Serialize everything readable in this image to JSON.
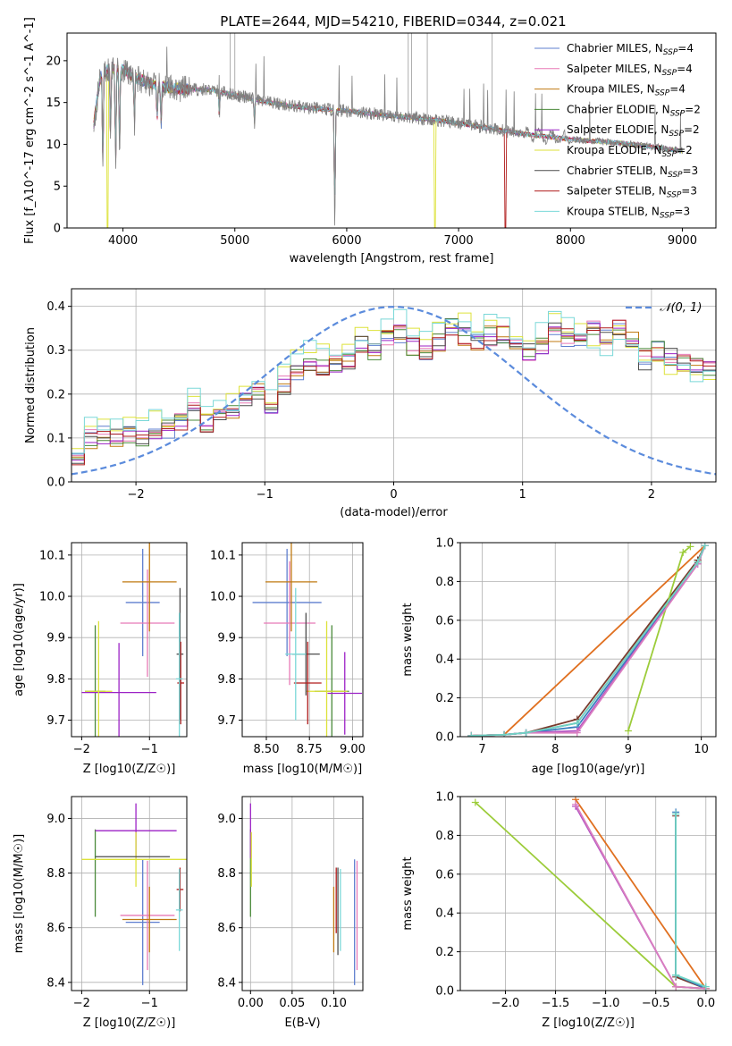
{
  "figure_title": "PLATE=2644, MJD=54210, FIBERID=0344, z=0.021",
  "colors": {
    "grid": "#b0b0b0",
    "normal_curve": "#5b8bdc",
    "series": [
      "#5f7fcf",
      "#e879b6",
      "#c07a12",
      "#4a8a3a",
      "#9c22c6",
      "#dde23a",
      "#4d4d4d",
      "#b01c1c",
      "#7ad8d8"
    ],
    "mw_series": [
      "#8f8f8f",
      "#7a3b2e",
      "#3a7fbf",
      "#b04fc2",
      "#e07020",
      "#9ccc3a",
      "#d97ec0",
      "#6fd3c4"
    ]
  },
  "chart_data": [
    {
      "type": "line",
      "name": "spectrum",
      "xlabel": "wavelength [Angstrom, rest frame]",
      "ylabel": "Flux [f_λ10^-17 erg cm^-2 s^-1 A^-1]",
      "xlim": [
        3500,
        9300
      ],
      "ylim": [
        0,
        23.3
      ],
      "xticks": [
        4000,
        5000,
        6000,
        7000,
        8000,
        9000
      ],
      "yticks": [
        0,
        5,
        10,
        15,
        20
      ],
      "grid": false,
      "legend_position": "top-right",
      "legend": [
        "Chabrier MILES, N_SSP=4",
        "Salpeter MILES, N_SSP=4",
        "Kroupa MILES, N_SSP=4",
        "Chabrier ELODIE, N_SSP=2",
        "Salpeter ELODIE, N_SSP=2",
        "Kroupa ELODIE, N_SSP=2",
        "Chabrier STELIB, N_SSP=3",
        "Salpeter STELIB, N_SSP=3",
        "Kroupa STELIB, N_SSP=3"
      ],
      "continuum": {
        "x": [
          3740,
          3800,
          3900,
          4000,
          4100,
          4300,
          4500,
          4800,
          5000,
          5300,
          5600,
          6000,
          6400,
          6800,
          7200,
          7600,
          8000,
          8400,
          8800,
          9000
        ],
        "y": [
          12.5,
          18.3,
          19.2,
          18.9,
          18.0,
          17.0,
          16.6,
          16.5,
          15.9,
          15.0,
          14.4,
          14.0,
          13.4,
          12.9,
          12.1,
          11.2,
          10.6,
          10.2,
          9.6,
          9.2
        ]
      },
      "absorption_lines": [
        {
          "x": 3820,
          "depth": 12.5
        },
        {
          "x": 3889,
          "depth": 9.0
        },
        {
          "x": 3934,
          "depth": 12.8
        },
        {
          "x": 3969,
          "depth": 10.5
        },
        {
          "x": 4102,
          "depth": 6.0
        },
        {
          "x": 4305,
          "depth": 4.5
        },
        {
          "x": 4341,
          "depth": 5.0
        },
        {
          "x": 4861,
          "depth": 3.0
        },
        {
          "x": 5175,
          "depth": 3.0
        },
        {
          "x": 5893,
          "depth": 14.2
        }
      ],
      "model_drops": [
        {
          "x": 3860,
          "to": 0.0,
          "series": 5
        },
        {
          "x": 6790,
          "to": 0.0,
          "series": 5
        },
        {
          "x": 7420,
          "to": 0.0,
          "series": 7
        }
      ]
    },
    {
      "type": "line",
      "name": "residual-histogram",
      "xlabel": "(data-model)/error",
      "ylabel": "Normed distribution",
      "xlim": [
        -2.5,
        2.5
      ],
      "ylim": [
        0,
        0.44
      ],
      "xticks": [
        -2,
        -1,
        0,
        1,
        2
      ],
      "yticks": [
        0.0,
        0.1,
        0.2,
        0.3,
        0.4
      ],
      "grid": true,
      "legend_position": "top-right",
      "legend": [
        "𝒩(0, 1)"
      ],
      "bin_edges_from": -2.5,
      "bin_width": 0.1,
      "base_profile": [
        0.06,
        0.1,
        0.11,
        0.1,
        0.11,
        0.1,
        0.11,
        0.12,
        0.14,
        0.16,
        0.13,
        0.16,
        0.15,
        0.18,
        0.2,
        0.17,
        0.22,
        0.25,
        0.27,
        0.26,
        0.27,
        0.28,
        0.31,
        0.3,
        0.33,
        0.34,
        0.31,
        0.3,
        0.32,
        0.35,
        0.33,
        0.32,
        0.33,
        0.34,
        0.3,
        0.3,
        0.31,
        0.34,
        0.33,
        0.33,
        0.35,
        0.33,
        0.36,
        0.33,
        0.28,
        0.3,
        0.28,
        0.27,
        0.27,
        0.25,
        0.24,
        0.22,
        0.22,
        0.2,
        0.21,
        0.18,
        0.17,
        0.19,
        0.16,
        0.18,
        0.15,
        0.14,
        0.14,
        0.13,
        0.12,
        0.1,
        0.09,
        0.08,
        0.08,
        0.07,
        0.07,
        0.06,
        0.06,
        0.05,
        0.04,
        0.04,
        0.04,
        0.03,
        0.03,
        0.03,
        0.02,
        0.02,
        0.02,
        0.02,
        0.01,
        0.01,
        0.02,
        0.01,
        0.01,
        0.02,
        0.01,
        0.01,
        0.02,
        0.01,
        0.01,
        0.01,
        0.01,
        0.01,
        0.01,
        0.01
      ]
    },
    {
      "type": "scatter",
      "name": "age-vs-Z",
      "xlabel": "Z [log10(Z/Z☉)]",
      "ylabel": "age  [log10(age/yr)]",
      "xlim": [
        -2.15,
        -0.45
      ],
      "ylim": [
        9.66,
        10.13
      ],
      "xticks": [
        -2,
        -1
      ],
      "yticks": [
        9.7,
        9.8,
        9.9,
        10.0,
        10.1
      ],
      "grid": true,
      "points": [
        {
          "series": 0,
          "x": -1.1,
          "xerr": 0.25,
          "y": 9.985,
          "yerr": 0.13
        },
        {
          "series": 1,
          "x": -1.03,
          "xerr": 0.4,
          "y": 9.935,
          "yerr": 0.13
        },
        {
          "series": 2,
          "x": -1.0,
          "xerr": 0.4,
          "y": 10.035,
          "yerr": 0.12
        },
        {
          "series": 3,
          "x": -1.8,
          "xerr": 0.15,
          "y": 9.77,
          "yerr": 0.16
        },
        {
          "series": 4,
          "x": -1.45,
          "xerr": 0.55,
          "y": 9.767,
          "yerr": 0.12
        },
        {
          "series": 5,
          "x": -1.75,
          "xerr": 0.2,
          "y": 9.77,
          "yerr": 0.17
        },
        {
          "series": 6,
          "x": -0.55,
          "xerr": 0.05,
          "y": 9.86,
          "yerr": 0.16
        },
        {
          "series": 7,
          "x": -0.54,
          "xerr": 0.05,
          "y": 9.79,
          "yerr": 0.1
        },
        {
          "series": 8,
          "x": -0.56,
          "xerr": 0.05,
          "y": 9.8,
          "yerr": 0.16
        }
      ]
    },
    {
      "type": "scatter",
      "name": "age-vs-mass",
      "xlabel": "mass [log10(M/M☉)]",
      "ylabel": "",
      "xlim": [
        8.36,
        9.06
      ],
      "ylim": [
        9.66,
        10.13
      ],
      "xticks": [
        8.5,
        8.75,
        9.0
      ],
      "yticks": [
        9.7,
        9.8,
        9.9,
        10.0,
        10.1
      ],
      "grid": true,
      "points": [
        {
          "series": 0,
          "x": 8.62,
          "xerr": 0.2,
          "y": 9.985,
          "yerr": 0.13
        },
        {
          "series": 1,
          "x": 8.635,
          "xerr": 0.15,
          "y": 9.935,
          "yerr": 0.15
        },
        {
          "series": 2,
          "x": 8.645,
          "xerr": 0.15,
          "y": 10.035,
          "yerr": 0.12
        },
        {
          "series": 3,
          "x": 8.88,
          "xerr": 0.1,
          "y": 9.77,
          "yerr": 0.16
        },
        {
          "series": 4,
          "x": 8.955,
          "xerr": 0.1,
          "y": 9.765,
          "yerr": 0.1
        },
        {
          "series": 5,
          "x": 8.85,
          "xerr": 0.12,
          "y": 9.77,
          "yerr": 0.17
        },
        {
          "series": 6,
          "x": 8.73,
          "xerr": 0.08,
          "y": 9.86,
          "yerr": 0.1
        },
        {
          "series": 7,
          "x": 8.74,
          "xerr": 0.08,
          "y": 9.79,
          "yerr": 0.1
        },
        {
          "series": 8,
          "x": 8.67,
          "xerr": 0.06,
          "y": 9.86,
          "yerr": 0.16
        }
      ]
    },
    {
      "type": "line",
      "name": "mass-weight-vs-age",
      "xlabel": "age  [log10(age/yr)]",
      "ylabel": "mass weight",
      "xlim": [
        6.7,
        10.2
      ],
      "ylim": [
        0,
        1
      ],
      "xticks": [
        7,
        8,
        9,
        10
      ],
      "yticks": [
        0.0,
        0.2,
        0.4,
        0.6,
        0.8,
        1.0
      ],
      "grid": true,
      "series": [
        {
          "color_index": 0,
          "x": [
            6.85,
            7.3,
            7.6,
            8.3,
            9.95,
            10.05
          ],
          "y": [
            0.005,
            0.01,
            0.02,
            0.07,
            0.9,
            0.985
          ]
        },
        {
          "color_index": 1,
          "x": [
            6.85,
            7.3,
            7.6,
            8.3,
            9.95,
            10.05
          ],
          "y": [
            0.005,
            0.01,
            0.02,
            0.09,
            0.91,
            0.985
          ]
        },
        {
          "color_index": 2,
          "x": [
            6.85,
            7.3,
            7.6,
            8.3,
            9.95,
            10.05
          ],
          "y": [
            0.005,
            0.01,
            0.02,
            0.05,
            0.89,
            0.985
          ]
        },
        {
          "color_index": 3,
          "x": [
            6.85,
            7.3,
            7.6,
            8.3,
            9.95,
            10.05
          ],
          "y": [
            0.005,
            0.01,
            0.02,
            0.03,
            0.89,
            0.985
          ]
        },
        {
          "color_index": 4,
          "x": [
            6.85,
            7.3,
            10.05
          ],
          "y": [
            0.005,
            0.01,
            0.985
          ]
        },
        {
          "color_index": 5,
          "x": [
            9.0,
            9.75,
            9.85
          ],
          "y": [
            0.03,
            0.95,
            0.98
          ]
        },
        {
          "color_index": 6,
          "x": [
            6.85,
            7.3,
            7.6,
            8.3,
            9.95,
            10.05
          ],
          "y": [
            0.005,
            0.01,
            0.02,
            0.02,
            0.89,
            0.985
          ]
        },
        {
          "color_index": 7,
          "x": [
            6.85,
            7.3,
            7.6,
            8.3,
            9.95,
            10.05
          ],
          "y": [
            0.005,
            0.01,
            0.02,
            0.07,
            0.9,
            0.985
          ]
        }
      ]
    },
    {
      "type": "scatter",
      "name": "mass-vs-Z",
      "xlabel": "Z [log10(Z/Z☉)]",
      "ylabel": "mass [log10(M/M☉)]",
      "xlim": [
        -2.15,
        -0.45
      ],
      "ylim": [
        8.37,
        9.08
      ],
      "xticks": [
        -2,
        -1
      ],
      "yticks": [
        8.4,
        8.6,
        8.8,
        9.0
      ],
      "grid": true,
      "points": [
        {
          "series": 0,
          "x": -1.1,
          "xerr": 0.25,
          "y": 8.62,
          "yerr": 0.23
        },
        {
          "series": 1,
          "x": -1.03,
          "xerr": 0.4,
          "y": 8.645,
          "yerr": 0.2
        },
        {
          "series": 2,
          "x": -1.0,
          "xerr": 0.4,
          "y": 8.63,
          "yerr": 0.12
        },
        {
          "series": 3,
          "x": -1.8,
          "xerr": 0.0,
          "y": 8.8,
          "yerr": 0.16
        },
        {
          "series": 4,
          "x": -1.2,
          "xerr": 0.6,
          "y": 8.955,
          "yerr": 0.1
        },
        {
          "series": 5,
          "x": -1.2,
          "xerr": 0.8,
          "y": 8.85,
          "yerr": 0.1
        },
        {
          "series": 6,
          "x": -1.25,
          "xerr": 0.55,
          "y": 8.86,
          "yerr": 0.0
        },
        {
          "series": 7,
          "x": -0.55,
          "xerr": 0.05,
          "y": 8.74,
          "yerr": 0.08
        },
        {
          "series": 8,
          "x": -0.56,
          "xerr": 0.05,
          "y": 8.665,
          "yerr": 0.15
        }
      ]
    },
    {
      "type": "scatter",
      "name": "mass-vs-EBV",
      "xlabel": "E(B-V)",
      "ylabel": "",
      "xlim": [
        -0.01,
        0.135
      ],
      "ylim": [
        8.37,
        9.08
      ],
      "xticks": [
        0.0,
        0.05,
        0.1
      ],
      "yticks": [
        8.4,
        8.6,
        8.8,
        9.0
      ],
      "grid": true,
      "points": [
        {
          "series": 0,
          "x": 0.125,
          "xerr": 0,
          "y": 8.62,
          "yerr": 0.23
        },
        {
          "series": 1,
          "x": 0.128,
          "xerr": 0,
          "y": 8.645,
          "yerr": 0.2
        },
        {
          "series": 2,
          "x": 0.1,
          "xerr": 0,
          "y": 8.63,
          "yerr": 0.12
        },
        {
          "series": 3,
          "x": 0.0,
          "xerr": 0,
          "y": 8.8,
          "yerr": 0.16
        },
        {
          "series": 4,
          "x": 0.0,
          "xerr": 0,
          "y": 8.955,
          "yerr": 0.1
        },
        {
          "series": 5,
          "x": 0.001,
          "xerr": 0,
          "y": 8.85,
          "yerr": 0.1
        },
        {
          "series": 6,
          "x": 0.105,
          "xerr": 0,
          "y": 8.66,
          "yerr": 0.16
        },
        {
          "series": 7,
          "x": 0.103,
          "xerr": 0,
          "y": 8.7,
          "yerr": 0.12
        },
        {
          "series": 8,
          "x": 0.108,
          "xerr": 0,
          "y": 8.665,
          "yerr": 0.15
        }
      ]
    },
    {
      "type": "line",
      "name": "mass-weight-vs-Z",
      "xlabel": "Z [log10(Z/Z☉)]",
      "ylabel": "mass weight",
      "xlim": [
        -2.45,
        0.1
      ],
      "ylim": [
        0,
        1
      ],
      "xticks": [
        -2.0,
        -1.5,
        -1.0,
        -0.5,
        0.0
      ],
      "yticks": [
        0.0,
        0.2,
        0.4,
        0.6,
        0.8,
        1.0
      ],
      "grid": true,
      "series": [
        {
          "color_index": 0,
          "x": [
            -0.3,
            -0.3,
            0.0
          ],
          "y": [
            0.91,
            0.08,
            0.01
          ]
        },
        {
          "color_index": 1,
          "x": [
            -0.3,
            -0.3,
            0.0
          ],
          "y": [
            0.9,
            0.07,
            0.01
          ]
        },
        {
          "color_index": 2,
          "x": [
            -0.3,
            -0.3,
            0.0
          ],
          "y": [
            0.92,
            0.08,
            0.01
          ]
        },
        {
          "color_index": 3,
          "x": [
            -1.3,
            -0.3,
            0.0
          ],
          "y": [
            0.95,
            0.02,
            0.01
          ]
        },
        {
          "color_index": 4,
          "x": [
            -1.3,
            0.0
          ],
          "y": [
            0.985,
            0.01
          ]
        },
        {
          "color_index": 5,
          "x": [
            -2.3,
            -0.3,
            0.0
          ],
          "y": [
            0.97,
            0.02,
            0.01
          ]
        },
        {
          "color_index": 6,
          "x": [
            -1.3,
            -0.3,
            0.0
          ],
          "y": [
            0.96,
            0.02,
            0.01
          ]
        },
        {
          "color_index": 7,
          "x": [
            -0.3,
            -0.3,
            0.0
          ],
          "y": [
            0.91,
            0.08,
            0.02
          ]
        }
      ]
    }
  ]
}
